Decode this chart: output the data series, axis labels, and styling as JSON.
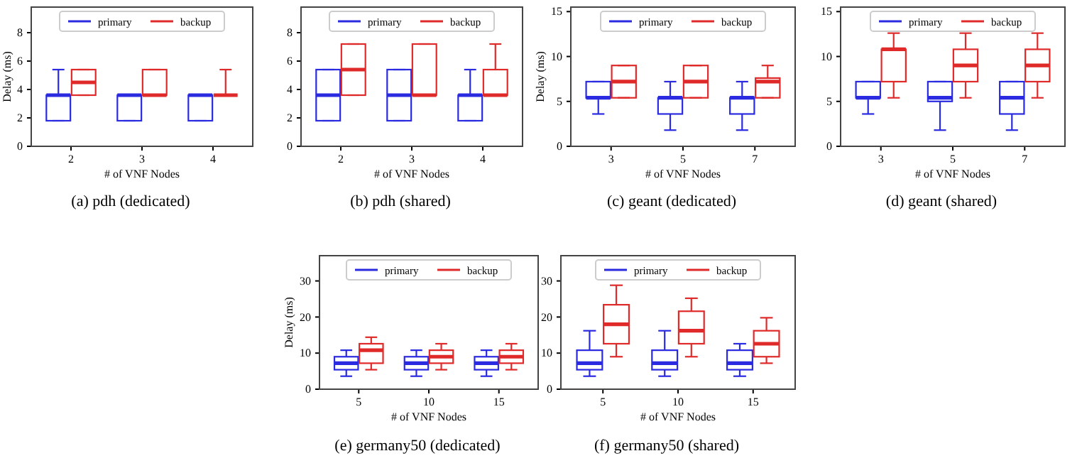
{
  "chart_data": [
    {
      "type": "box",
      "title": "(a) pdh (dedicated)",
      "xlabel": "# of VNF Nodes",
      "ylabel": "Delay (ms)",
      "categories": [
        "2",
        "3",
        "4"
      ],
      "ylim": [
        0,
        9.8
      ],
      "yticks": [
        0,
        2,
        4,
        6,
        8
      ],
      "legend": "top",
      "series": [
        {
          "name": "primary",
          "color": "#2a2ae0",
          "boxes": [
            {
              "low": 1.8,
              "q1": 1.8,
              "median": 3.6,
              "q3": 3.6,
              "high": 5.4
            },
            {
              "low": 1.8,
              "q1": 1.8,
              "median": 3.6,
              "q3": 3.6,
              "high": 3.6
            },
            {
              "low": 1.8,
              "q1": 1.8,
              "median": 3.6,
              "q3": 3.6,
              "high": 3.6
            }
          ]
        },
        {
          "name": "backup",
          "color": "#e02a2a",
          "boxes": [
            {
              "low": 3.6,
              "q1": 3.6,
              "median": 4.5,
              "q3": 5.4,
              "high": 5.4
            },
            {
              "low": 3.6,
              "q1": 3.6,
              "median": 3.6,
              "q3": 5.4,
              "high": 5.4
            },
            {
              "low": 3.6,
              "q1": 3.6,
              "median": 3.6,
              "q3": 3.6,
              "high": 5.4
            }
          ]
        }
      ]
    },
    {
      "type": "box",
      "title": "(b) pdh (shared)",
      "xlabel": "# of VNF Nodes",
      "categories": [
        "2",
        "3",
        "4"
      ],
      "ylim": [
        0,
        9.8
      ],
      "yticks": [
        0,
        2,
        4,
        6,
        8
      ],
      "legend": "top",
      "series": [
        {
          "name": "primary",
          "color": "#2a2ae0",
          "boxes": [
            {
              "low": 1.8,
              "q1": 1.8,
              "median": 3.6,
              "q3": 5.4,
              "high": 5.4
            },
            {
              "low": 1.8,
              "q1": 1.8,
              "median": 3.6,
              "q3": 5.4,
              "high": 5.4
            },
            {
              "low": 1.8,
              "q1": 1.8,
              "median": 3.6,
              "q3": 3.6,
              "high": 5.4
            }
          ]
        },
        {
          "name": "backup",
          "color": "#e02a2a",
          "boxes": [
            {
              "low": 3.6,
              "q1": 3.6,
              "median": 5.4,
              "q3": 7.2,
              "high": 7.2
            },
            {
              "low": 3.6,
              "q1": 3.6,
              "median": 3.6,
              "q3": 7.2,
              "high": 7.2
            },
            {
              "low": 3.6,
              "q1": 3.6,
              "median": 3.6,
              "q3": 5.4,
              "high": 7.2
            }
          ]
        }
      ]
    },
    {
      "type": "box",
      "title": "(c) geant (dedicated)",
      "xlabel": "# of VNF Nodes",
      "ylabel": "Delay (ms)",
      "categories": [
        "3",
        "5",
        "7"
      ],
      "ylim": [
        0,
        15.5
      ],
      "yticks": [
        0,
        5,
        10,
        15
      ],
      "legend": "top",
      "series": [
        {
          "name": "primary",
          "color": "#2a2ae0",
          "boxes": [
            {
              "low": 3.6,
              "q1": 5.4,
              "median": 5.4,
              "q3": 7.2,
              "high": 7.2
            },
            {
              "low": 1.8,
              "q1": 3.6,
              "median": 5.4,
              "q3": 5.4,
              "high": 7.2
            },
            {
              "low": 1.8,
              "q1": 3.6,
              "median": 5.4,
              "q3": 5.4,
              "high": 7.2
            }
          ]
        },
        {
          "name": "backup",
          "color": "#e02a2a",
          "boxes": [
            {
              "low": 5.4,
              "q1": 5.4,
              "median": 7.2,
              "q3": 9,
              "high": 9
            },
            {
              "low": 5.4,
              "q1": 5.4,
              "median": 7.2,
              "q3": 9,
              "high": 9
            },
            {
              "low": 5.4,
              "q1": 5.4,
              "median": 7.2,
              "q3": 7.6,
              "high": 9
            }
          ]
        }
      ]
    },
    {
      "type": "box",
      "title": "(d) geant (shared)",
      "xlabel": "# of VNF Nodes",
      "categories": [
        "3",
        "5",
        "7"
      ],
      "ylim": [
        0,
        15.5
      ],
      "yticks": [
        0,
        5,
        10,
        15
      ],
      "legend": "top",
      "series": [
        {
          "name": "primary",
          "color": "#2a2ae0",
          "boxes": [
            {
              "low": 3.6,
              "q1": 5.4,
              "median": 5.4,
              "q3": 7.2,
              "high": 7.2
            },
            {
              "low": 1.8,
              "q1": 5,
              "median": 5.4,
              "q3": 7.2,
              "high": 7.2
            },
            {
              "low": 1.8,
              "q1": 3.6,
              "median": 5.4,
              "q3": 7.2,
              "high": 7.2
            }
          ]
        },
        {
          "name": "backup",
          "color": "#e02a2a",
          "boxes": [
            {
              "low": 5.4,
              "q1": 7.2,
              "median": 10.8,
              "q3": 10.8,
              "high": 12.6
            },
            {
              "low": 5.4,
              "q1": 7.2,
              "median": 9,
              "q3": 10.8,
              "high": 12.6
            },
            {
              "low": 5.4,
              "q1": 7.2,
              "median": 9,
              "q3": 10.8,
              "high": 12.6
            }
          ]
        }
      ]
    },
    {
      "type": "box",
      "title": "(e) germany50 (dedicated)",
      "xlabel": "# of VNF Nodes",
      "ylabel": "Delay (ms)",
      "categories": [
        "5",
        "10",
        "15"
      ],
      "ylim": [
        0,
        37
      ],
      "yticks": [
        0,
        10,
        20,
        30
      ],
      "legend": "top",
      "series": [
        {
          "name": "primary",
          "color": "#2a2ae0",
          "boxes": [
            {
              "low": 3.6,
              "q1": 5.4,
              "median": 7.2,
              "q3": 9,
              "high": 10.8
            },
            {
              "low": 3.6,
              "q1": 5.4,
              "median": 7.2,
              "q3": 9,
              "high": 10.8
            },
            {
              "low": 3.6,
              "q1": 5.4,
              "median": 7.2,
              "q3": 9,
              "high": 10.8
            }
          ]
        },
        {
          "name": "backup",
          "color": "#e02a2a",
          "boxes": [
            {
              "low": 5.4,
              "q1": 7.2,
              "median": 10.8,
              "q3": 12.6,
              "high": 14.4
            },
            {
              "low": 5.4,
              "q1": 7.2,
              "median": 9,
              "q3": 10.8,
              "high": 12.6
            },
            {
              "low": 5.4,
              "q1": 7.2,
              "median": 9,
              "q3": 10.8,
              "high": 12.6
            }
          ]
        }
      ]
    },
    {
      "type": "box",
      "title": "(f) germany50 (shared)",
      "xlabel": "# of VNF Nodes",
      "categories": [
        "5",
        "10",
        "15"
      ],
      "ylim": [
        0,
        37
      ],
      "yticks": [
        0,
        10,
        20,
        30
      ],
      "legend": "top",
      "series": [
        {
          "name": "primary",
          "color": "#2a2ae0",
          "boxes": [
            {
              "low": 3.6,
              "q1": 5.4,
              "median": 7.2,
              "q3": 10.8,
              "high": 16.2
            },
            {
              "low": 3.6,
              "q1": 5.4,
              "median": 7.2,
              "q3": 10.8,
              "high": 16.2
            },
            {
              "low": 3.6,
              "q1": 5.4,
              "median": 7.2,
              "q3": 10.8,
              "high": 12.6
            }
          ]
        },
        {
          "name": "backup",
          "color": "#e02a2a",
          "boxes": [
            {
              "low": 9,
              "q1": 12.6,
              "median": 18,
              "q3": 23.4,
              "high": 28.8
            },
            {
              "low": 9,
              "q1": 12.6,
              "median": 16.2,
              "q3": 21.6,
              "high": 25.2
            },
            {
              "low": 7.2,
              "q1": 9,
              "median": 12.6,
              "q3": 16.2,
              "high": 19.8
            }
          ]
        }
      ]
    }
  ]
}
